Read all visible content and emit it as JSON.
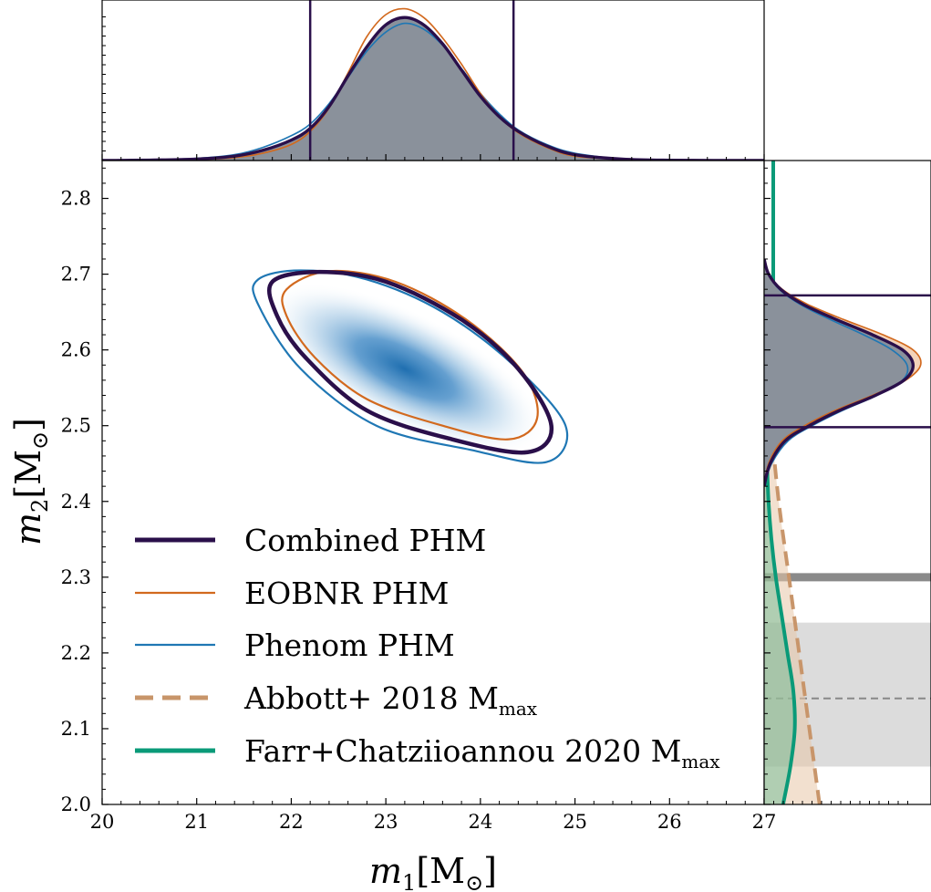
{
  "chart_data": {
    "type": "corner",
    "xlabel": "m_1[M_⊙]",
    "ylabel": "m_2[M_⊙]",
    "xlabel_main": "m",
    "xlabel_sub": "1",
    "xlabel_unit": "[M",
    "xlabel_unit_sub": "⊙",
    "xlabel_close": "]",
    "ylabel_main": "m",
    "ylabel_sub": "2",
    "ylabel_unit": "[M",
    "ylabel_unit_sub": "⊙",
    "ylabel_close": "]",
    "xlim": [
      20,
      27
    ],
    "ylim": [
      2.0,
      2.85
    ],
    "xticks": [
      "20",
      "21",
      "22",
      "23",
      "24",
      "25",
      "26",
      "27"
    ],
    "yticks": [
      "2.0",
      "2.1",
      "2.2",
      "2.3",
      "2.4",
      "2.5",
      "2.6",
      "2.7",
      "2.8"
    ],
    "grid": false,
    "legend_position": "lower-left",
    "series": [
      {
        "name": "Combined PHM",
        "color": "#2a0f4a",
        "style": "solid-thick"
      },
      {
        "name": "EOBNR PHM",
        "color": "#d2691e",
        "style": "solid"
      },
      {
        "name": "Phenom PHM",
        "color": "#1f77b4",
        "style": "solid"
      },
      {
        "name": "Abbott+ 2018 M",
        "name_sub": "max",
        "color": "#c8956a",
        "style": "dashed"
      },
      {
        "name": "Farr+Chatziioannou 2020 M",
        "name_sub": "max",
        "color": "#0a9a78",
        "style": "solid-thick"
      }
    ],
    "contours_90": {
      "combined": [
        [
          21.8,
          2.69
        ],
        [
          22.3,
          2.703
        ],
        [
          23.0,
          2.69
        ],
        [
          23.8,
          2.64
        ],
        [
          24.4,
          2.575
        ],
        [
          24.75,
          2.5
        ],
        [
          24.5,
          2.465
        ],
        [
          23.7,
          2.482
        ],
        [
          22.8,
          2.52
        ],
        [
          22.15,
          2.59
        ],
        [
          21.85,
          2.645
        ]
      ],
      "eobnr": [
        [
          21.95,
          2.68
        ],
        [
          22.4,
          2.704
        ],
        [
          23.1,
          2.69
        ],
        [
          23.85,
          2.64
        ],
        [
          24.45,
          2.57
        ],
        [
          24.6,
          2.51
        ],
        [
          24.3,
          2.482
        ],
        [
          23.6,
          2.5
        ],
        [
          22.8,
          2.535
        ],
        [
          22.25,
          2.59
        ],
        [
          21.95,
          2.645
        ]
      ],
      "phenom": [
        [
          21.65,
          2.693
        ],
        [
          22.1,
          2.705
        ],
        [
          22.8,
          2.693
        ],
        [
          23.6,
          2.65
        ],
        [
          24.35,
          2.58
        ],
        [
          24.9,
          2.5
        ],
        [
          24.7,
          2.452
        ],
        [
          23.9,
          2.468
        ],
        [
          22.9,
          2.5
        ],
        [
          22.1,
          2.575
        ],
        [
          21.65,
          2.66
        ]
      ]
    },
    "density_peak": [
      23.2,
      2.575
    ],
    "m1_marginal": {
      "interval_90": [
        22.2,
        24.35
      ],
      "x": [
        20.0,
        20.5,
        21.0,
        21.4,
        21.7,
        22.0,
        22.2,
        22.4,
        22.6,
        22.8,
        23.0,
        23.2,
        23.4,
        23.6,
        23.8,
        24.0,
        24.2,
        24.4,
        24.7,
        25.0,
        25.5,
        26.0,
        27.0
      ],
      "combined": [
        0.0,
        0.003,
        0.01,
        0.03,
        0.07,
        0.14,
        0.22,
        0.37,
        0.58,
        0.78,
        0.93,
        0.98,
        0.93,
        0.8,
        0.62,
        0.44,
        0.3,
        0.2,
        0.1,
        0.04,
        0.01,
        0.002,
        0.0
      ],
      "eobnr": [
        0.0,
        0.002,
        0.008,
        0.02,
        0.05,
        0.11,
        0.2,
        0.36,
        0.6,
        0.85,
        1.0,
        1.04,
        0.98,
        0.84,
        0.66,
        0.46,
        0.3,
        0.19,
        0.09,
        0.03,
        0.008,
        0.001,
        0.0
      ],
      "phenom": [
        0.0,
        0.004,
        0.015,
        0.04,
        0.09,
        0.17,
        0.25,
        0.39,
        0.57,
        0.75,
        0.88,
        0.94,
        0.9,
        0.79,
        0.63,
        0.46,
        0.32,
        0.21,
        0.11,
        0.05,
        0.012,
        0.003,
        0.0
      ]
    },
    "m2_marginal": {
      "interval_90": [
        2.498,
        2.672
      ],
      "y": [
        2.42,
        2.45,
        2.48,
        2.5,
        2.52,
        2.54,
        2.56,
        2.58,
        2.6,
        2.62,
        2.64,
        2.66,
        2.68,
        2.7,
        2.72
      ],
      "combined": [
        0.0,
        0.04,
        0.14,
        0.3,
        0.5,
        0.74,
        0.93,
        0.99,
        0.92,
        0.72,
        0.48,
        0.26,
        0.11,
        0.03,
        0.0
      ],
      "eobnr": [
        0.0,
        0.03,
        0.12,
        0.27,
        0.47,
        0.72,
        0.94,
        1.04,
        0.99,
        0.79,
        0.53,
        0.29,
        0.12,
        0.03,
        0.0
      ],
      "phenom": [
        0.0,
        0.05,
        0.16,
        0.32,
        0.52,
        0.75,
        0.92,
        0.95,
        0.85,
        0.66,
        0.44,
        0.24,
        0.1,
        0.03,
        0.0
      ]
    },
    "abbott_2018_mmax": {
      "y": [
        2.0,
        2.1,
        2.2,
        2.3,
        2.4,
        2.5,
        2.6
      ],
      "density": [
        0.38,
        0.31,
        0.24,
        0.17,
        0.1,
        0.05,
        0.02
      ]
    },
    "farr_chatziioannou_2020_mmax": {
      "y": [
        2.0,
        2.05,
        2.1,
        2.15,
        2.2,
        2.25,
        2.3,
        2.35,
        2.4,
        2.45,
        2.5
      ],
      "density": [
        0.13,
        0.18,
        0.21,
        0.2,
        0.16,
        0.12,
        0.08,
        0.05,
        0.03,
        0.02,
        0.01
      ]
    },
    "mmax_marginal_lines": {
      "gray_line_m2": 2.3,
      "dashed_line_m2": 2.14,
      "shaded_band_m2": [
        2.05,
        2.24
      ]
    }
  }
}
